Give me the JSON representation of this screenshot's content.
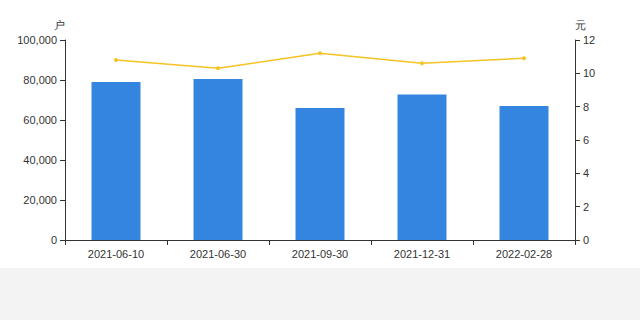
{
  "chart_data": {
    "type": "bar",
    "categories": [
      "2021-06-10",
      "2021-06-30",
      "2021-09-30",
      "2021-12-31",
      "2022-02-28"
    ],
    "series": [
      {
        "type": "bar",
        "color": "#3485e0",
        "values": [
          79000,
          80500,
          66000,
          72800,
          67000
        ]
      },
      {
        "type": "line",
        "color": "#f5c323",
        "marker": "circle",
        "axis": "y2",
        "values": [
          10.8,
          10.3,
          11.2,
          10.6,
          10.9
        ]
      }
    ],
    "ylabel": "户",
    "y2label": "元",
    "ylim": [
      0,
      100000
    ],
    "yticks": [
      0,
      {
        "value": 20000,
        "label": "20,000"
      },
      {
        "value": 40000,
        "label": "40,000"
      },
      {
        "value": 60000,
        "label": "60,000"
      },
      {
        "value": 80000,
        "label": "80,000"
      },
      {
        "value": 100000,
        "label": "100,000"
      }
    ],
    "y2lim": [
      0,
      12
    ],
    "y2ticks": [
      0,
      2,
      4,
      6,
      8,
      10,
      12
    ],
    "grid": false
  }
}
